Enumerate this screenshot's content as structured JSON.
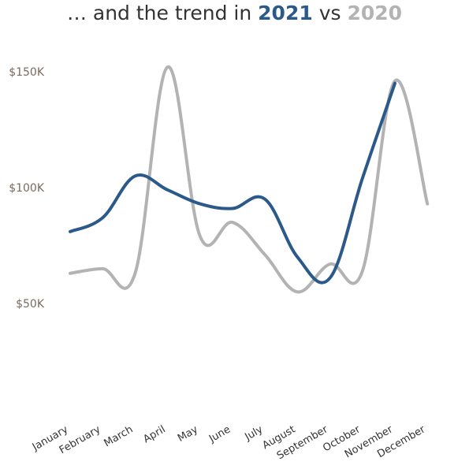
{
  "title": {
    "prefix": "… and the trend in ",
    "year_current": "2021",
    "middle": " vs ",
    "year_previous": "2020"
  },
  "colors": {
    "current": "#2b5a8a",
    "previous": "#b3b3b3",
    "tick_y": "#7a6a5e"
  },
  "chart_data": {
    "type": "line",
    "categories": [
      "January",
      "February",
      "March",
      "April",
      "May",
      "June",
      "July",
      "August",
      "September",
      "October",
      "November",
      "December"
    ],
    "series": [
      {
        "name": "2021",
        "values": [
          81000,
          87000,
          105000,
          99000,
          93000,
          91000,
          95000,
          70000,
          61000,
          104000,
          145000,
          null
        ]
      },
      {
        "name": "2020",
        "values": [
          63000,
          65000,
          63000,
          152000,
          79000,
          85000,
          71000,
          55000,
          67000,
          64000,
          146000,
          93000
        ]
      }
    ],
    "yticks": [
      {
        "value": 50000,
        "label": "$50K"
      },
      {
        "value": 100000,
        "label": "$100K"
      },
      {
        "value": 150000,
        "label": "$150K"
      }
    ],
    "ylim": [
      0,
      160000
    ],
    "grid": false,
    "legend": "in title"
  }
}
